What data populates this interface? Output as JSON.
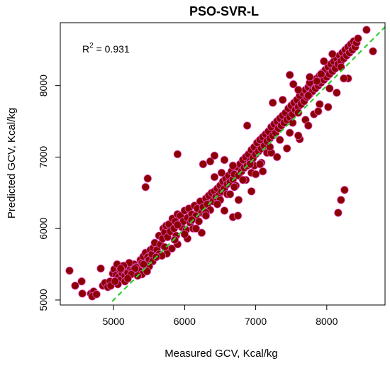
{
  "chart_data": {
    "type": "scatter",
    "title": "PSO-SVR-L",
    "xlabel": "Measured GCV, Kcal/kg",
    "ylabel": "Predicted GCV, Kcal/kg",
    "xlim": [
      4250,
      8820
    ],
    "ylim": [
      4930,
      8880
    ],
    "xticks": [
      5000,
      6000,
      7000,
      8000
    ],
    "yticks": [
      5000,
      6000,
      7000,
      8000
    ],
    "grid": false,
    "annotation": {
      "prefix": "R",
      "sup": "2",
      "suffix": " = 0.931"
    },
    "colors": {
      "point_fill": "#8b0000",
      "point_halo": "#ff66ff",
      "fit_line": "#32cd32"
    },
    "fit_line": {
      "style": "dashed",
      "from": [
        4980,
        4980
      ],
      "to": [
        8820,
        8820
      ]
    },
    "series": [
      {
        "points": [
          [
            4380,
            5410
          ],
          [
            4460,
            5200
          ],
          [
            4550,
            5260
          ],
          [
            4560,
            5090
          ],
          [
            4680,
            5090
          ],
          [
            4720,
            5120
          ],
          [
            4700,
            5050
          ],
          [
            4760,
            5080
          ],
          [
            4820,
            5440
          ],
          [
            4850,
            5200
          ],
          [
            4880,
            5240
          ],
          [
            4920,
            5180
          ],
          [
            4950,
            5260
          ],
          [
            4990,
            5370
          ],
          [
            5010,
            5430
          ],
          [
            5040,
            5350
          ],
          [
            5050,
            5500
          ],
          [
            5070,
            5320
          ],
          [
            5090,
            5420
          ],
          [
            5100,
            5280
          ],
          [
            5120,
            5380
          ],
          [
            5140,
            5450
          ],
          [
            5160,
            5340
          ],
          [
            5180,
            5410
          ],
          [
            5200,
            5380
          ],
          [
            5230,
            5460
          ],
          [
            5260,
            5400
          ],
          [
            5290,
            5500
          ],
          [
            5320,
            5460
          ],
          [
            5360,
            5410
          ],
          [
            5380,
            5560
          ],
          [
            5400,
            5520
          ],
          [
            5420,
            5610
          ],
          [
            5450,
            5660
          ],
          [
            5460,
            5420
          ],
          [
            5480,
            5600
          ],
          [
            5500,
            5560
          ],
          [
            5520,
            5700
          ],
          [
            5540,
            5640
          ],
          [
            5560,
            5730
          ],
          [
            5580,
            5800
          ],
          [
            5610,
            5700
          ],
          [
            5640,
            5900
          ],
          [
            5660,
            5780
          ],
          [
            5690,
            5860
          ],
          [
            5700,
            6000
          ],
          [
            5720,
            5950
          ],
          [
            5740,
            6040
          ],
          [
            5760,
            5880
          ],
          [
            5780,
            6060
          ],
          [
            5800,
            5960
          ],
          [
            5820,
            5720
          ],
          [
            5830,
            6140
          ],
          [
            5850,
            6000
          ],
          [
            5870,
            6100
          ],
          [
            5880,
            5900
          ],
          [
            5900,
            6200
          ],
          [
            5920,
            6060
          ],
          [
            5940,
            6180
          ],
          [
            5960,
            6020
          ],
          [
            5980,
            6100
          ],
          [
            6000,
            6250
          ],
          [
            6020,
            5980
          ],
          [
            6040,
            6150
          ],
          [
            6060,
            6280
          ],
          [
            6080,
            6080
          ],
          [
            6100,
            6200
          ],
          [
            6120,
            6000
          ],
          [
            6140,
            6320
          ],
          [
            6160,
            6180
          ],
          [
            6180,
            6280
          ],
          [
            6200,
            6100
          ],
          [
            6220,
            6380
          ],
          [
            6240,
            6220
          ],
          [
            6260,
            6300
          ],
          [
            6280,
            6200
          ],
          [
            6300,
            6420
          ],
          [
            6320,
            6340
          ],
          [
            6340,
            6460
          ],
          [
            6360,
            6260
          ],
          [
            6380,
            6500
          ],
          [
            6400,
            6380
          ],
          [
            6420,
            6520
          ],
          [
            6440,
            6440
          ],
          [
            6460,
            6560
          ],
          [
            6480,
            6460
          ],
          [
            6500,
            6600
          ],
          [
            6520,
            6520
          ],
          [
            6540,
            6660
          ],
          [
            6560,
            6560
          ],
          [
            6580,
            6700
          ],
          [
            6600,
            6620
          ],
          [
            6620,
            6740
          ],
          [
            6640,
            6650
          ],
          [
            6660,
            6800
          ],
          [
            6680,
            6690
          ],
          [
            6700,
            6760
          ],
          [
            6720,
            6600
          ],
          [
            6740,
            6860
          ],
          [
            6760,
            6740
          ],
          [
            6780,
            6900
          ],
          [
            6800,
            6800
          ],
          [
            6820,
            6960
          ],
          [
            6840,
            6850
          ],
          [
            6860,
            7000
          ],
          [
            6880,
            6880
          ],
          [
            6900,
            7040
          ],
          [
            6920,
            6940
          ],
          [
            6940,
            7100
          ],
          [
            6960,
            6980
          ],
          [
            6980,
            7140
          ],
          [
            7000,
            7040
          ],
          [
            7020,
            7200
          ],
          [
            7040,
            7080
          ],
          [
            7060,
            7240
          ],
          [
            7080,
            7120
          ],
          [
            7100,
            7280
          ],
          [
            7120,
            7160
          ],
          [
            7140,
            7320
          ],
          [
            7160,
            7220
          ],
          [
            7180,
            7360
          ],
          [
            7200,
            7260
          ],
          [
            7220,
            7420
          ],
          [
            7240,
            7300
          ],
          [
            7260,
            7460
          ],
          [
            7280,
            7340
          ],
          [
            7300,
            7500
          ],
          [
            7320,
            7400
          ],
          [
            7340,
            7540
          ],
          [
            7360,
            7440
          ],
          [
            7380,
            7580
          ],
          [
            7400,
            7480
          ],
          [
            7420,
            7620
          ],
          [
            7440,
            7520
          ],
          [
            7460,
            7680
          ],
          [
            7480,
            7560
          ],
          [
            7500,
            7720
          ],
          [
            7520,
            7600
          ],
          [
            7540,
            7760
          ],
          [
            7560,
            7660
          ],
          [
            7580,
            7800
          ],
          [
            7600,
            7700
          ],
          [
            7620,
            7860
          ],
          [
            7640,
            7740
          ],
          [
            7660,
            7900
          ],
          [
            7680,
            7780
          ],
          [
            7700,
            7940
          ],
          [
            7720,
            7840
          ],
          [
            7740,
            7980
          ],
          [
            7760,
            7880
          ],
          [
            7780,
            8020
          ],
          [
            7800,
            7920
          ],
          [
            7820,
            8060
          ],
          [
            7840,
            7960
          ],
          [
            7860,
            8100
          ],
          [
            7880,
            8000
          ],
          [
            7900,
            8140
          ],
          [
            7920,
            8040
          ],
          [
            7940,
            8180
          ],
          [
            7960,
            8080
          ],
          [
            7980,
            8220
          ],
          [
            8000,
            8120
          ],
          [
            8020,
            8260
          ],
          [
            8040,
            8160
          ],
          [
            8060,
            8300
          ],
          [
            8080,
            8200
          ],
          [
            8100,
            8340
          ],
          [
            8120,
            8240
          ],
          [
            8140,
            8380
          ],
          [
            8160,
            8300
          ],
          [
            8180,
            8420
          ],
          [
            8200,
            8340
          ],
          [
            8220,
            8460
          ],
          [
            8240,
            8380
          ],
          [
            8260,
            8500
          ],
          [
            8280,
            8420
          ],
          [
            8300,
            8540
          ],
          [
            8320,
            8460
          ],
          [
            8340,
            8580
          ],
          [
            8360,
            8500
          ],
          [
            8380,
            8620
          ],
          [
            8400,
            8540
          ],
          [
            8420,
            8600
          ],
          [
            8440,
            8660
          ],
          [
            8560,
            8780
          ],
          [
            8650,
            8480
          ],
          [
            8300,
            8100
          ],
          [
            8040,
            7960
          ],
          [
            7920,
            8160
          ],
          [
            7760,
            8040
          ],
          [
            7760,
            8120
          ],
          [
            7860,
            8060
          ],
          [
            7600,
            7620
          ],
          [
            7480,
            8150
          ],
          [
            7380,
            7800
          ],
          [
            7530,
            8020
          ],
          [
            7240,
            7760
          ],
          [
            7520,
            7480
          ],
          [
            7620,
            7250
          ],
          [
            7700,
            7520
          ],
          [
            7900,
            7740
          ],
          [
            7820,
            7600
          ],
          [
            7160,
            7060
          ],
          [
            7220,
            7060
          ],
          [
            7080,
            6920
          ],
          [
            6980,
            6880
          ],
          [
            6880,
            7440
          ],
          [
            6940,
            6780
          ],
          [
            7000,
            6760
          ],
          [
            6920,
            6900
          ],
          [
            6680,
            6880
          ],
          [
            6520,
            6780
          ],
          [
            6560,
            6960
          ],
          [
            6360,
            6940
          ],
          [
            6420,
            7020
          ],
          [
            6260,
            6900
          ],
          [
            6700,
            6580
          ],
          [
            6600,
            6480
          ],
          [
            6500,
            6400
          ],
          [
            6300,
            6220
          ],
          [
            6100,
            6120
          ],
          [
            5900,
            6050
          ],
          [
            5900,
            5780
          ],
          [
            5750,
            5650
          ],
          [
            5640,
            5640
          ],
          [
            5550,
            5540
          ],
          [
            5500,
            5470
          ],
          [
            5300,
            5440
          ],
          [
            5220,
            5520
          ],
          [
            5140,
            5480
          ],
          [
            5160,
            5260
          ],
          [
            5250,
            5360
          ],
          [
            5400,
            5360
          ],
          [
            5470,
            5400
          ],
          [
            5680,
            5620
          ],
          [
            6040,
            5860
          ],
          [
            6240,
            5940
          ],
          [
            6560,
            6250
          ],
          [
            6760,
            6400
          ],
          [
            6680,
            6160
          ],
          [
            6940,
            6520
          ],
          [
            7100,
            6800
          ],
          [
            7300,
            7000
          ],
          [
            7440,
            7120
          ],
          [
            7600,
            7300
          ],
          [
            7740,
            7440
          ],
          [
            7880,
            7640
          ],
          [
            8020,
            7700
          ],
          [
            8140,
            7900
          ],
          [
            8240,
            8100
          ],
          [
            8080,
            8440
          ],
          [
            8200,
            8260
          ],
          [
            7960,
            8340
          ],
          [
            7740,
            7860
          ],
          [
            7600,
            7940
          ],
          [
            7480,
            7340
          ],
          [
            7340,
            7240
          ],
          [
            7200,
            7140
          ],
          [
            7060,
            6900
          ],
          [
            6860,
            6680
          ],
          [
            6820,
            6680
          ],
          [
            6640,
            6480
          ],
          [
            6460,
            6340
          ],
          [
            6300,
            6180
          ],
          [
            6160,
            6000
          ],
          [
            6000,
            5920
          ],
          [
            5860,
            5840
          ],
          [
            5720,
            5740
          ],
          [
            5600,
            5600
          ],
          [
            5420,
            5500
          ],
          [
            5340,
            5340
          ],
          [
            5200,
            5300
          ],
          [
            5100,
            5440
          ],
          [
            5060,
            5220
          ],
          [
            4960,
            5200
          ],
          [
            5020,
            5260
          ],
          [
            5450,
            6580
          ],
          [
            5480,
            6700
          ],
          [
            5900,
            7040
          ],
          [
            6750,
            6180
          ],
          [
            8250,
            6540
          ],
          [
            8200,
            6400
          ],
          [
            8160,
            6220
          ],
          [
            6420,
            6720
          ]
        ]
      }
    ]
  }
}
